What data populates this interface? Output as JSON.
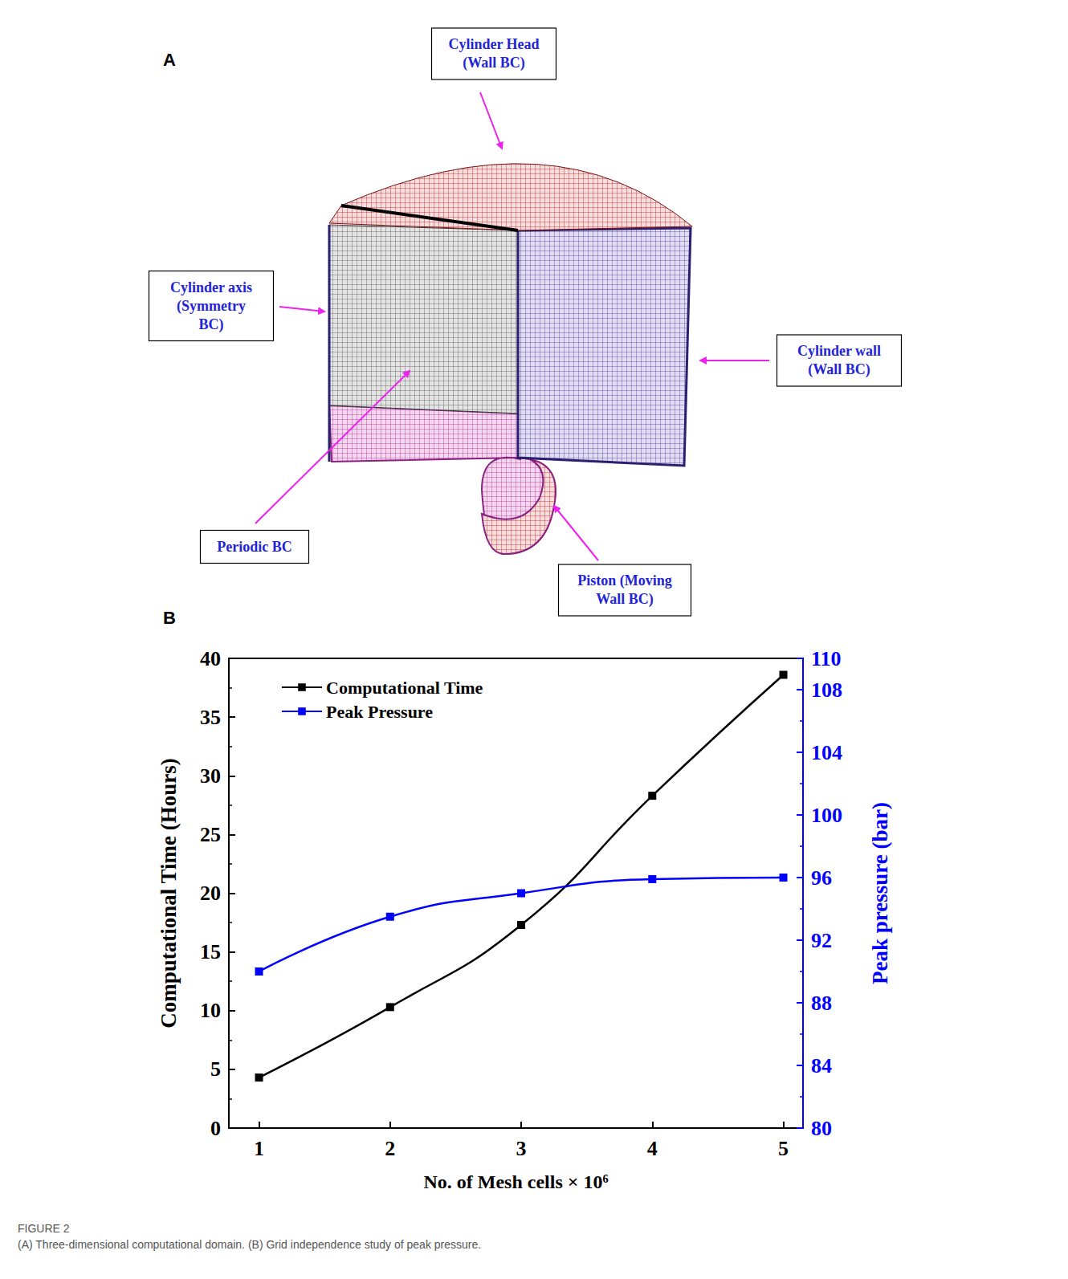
{
  "panels": {
    "a": {
      "letter": "A",
      "labels": [
        {
          "lines": [
            "Cylinder Head",
            "(Wall BC)"
          ]
        },
        {
          "lines": [
            "Cylinder axis",
            "(Symmetry",
            "BC)"
          ]
        },
        {
          "lines": [
            "Cylinder wall",
            "(Wall BC)"
          ]
        },
        {
          "lines": [
            "Periodic BC"
          ]
        },
        {
          "lines": [
            "Piston (Moving",
            "Wall BC)"
          ]
        }
      ]
    },
    "b": {
      "letter": "B"
    }
  },
  "chart_data": {
    "type": "line",
    "x_label": "No. of Mesh cells × 10⁶",
    "y_label": "Computational Time (Hours)",
    "y2_label": "Peak pressure (bar)",
    "x": [
      1,
      2,
      3,
      4,
      5
    ],
    "series": [
      {
        "name": "Computational Time",
        "color": "#000000",
        "marker": "square",
        "values": [
          4.3,
          10.3,
          17.3,
          28.3,
          38.6
        ]
      },
      {
        "name": "Peak Pressure",
        "color": "#0000ff",
        "marker": "square",
        "axis": "y2",
        "values": [
          90,
          93.5,
          95,
          95.9,
          96
        ]
      }
    ],
    "xlim": [
      0.77,
      5.15
    ],
    "xticks": [
      1,
      2,
      3,
      4,
      5
    ],
    "ylim": [
      0,
      40
    ],
    "yticks": [
      0,
      5,
      10,
      15,
      20,
      25,
      30,
      35,
      40
    ],
    "y2lim": [
      80,
      110
    ],
    "y2ticks": [
      80,
      84,
      88,
      92,
      96,
      100,
      104,
      108
    ],
    "grid": false,
    "legend": "top-left"
  },
  "caption": {
    "label": "FIGURE 2",
    "text": "(A) Three-dimensional computational domain. (B) Grid independence study of peak pressure."
  }
}
